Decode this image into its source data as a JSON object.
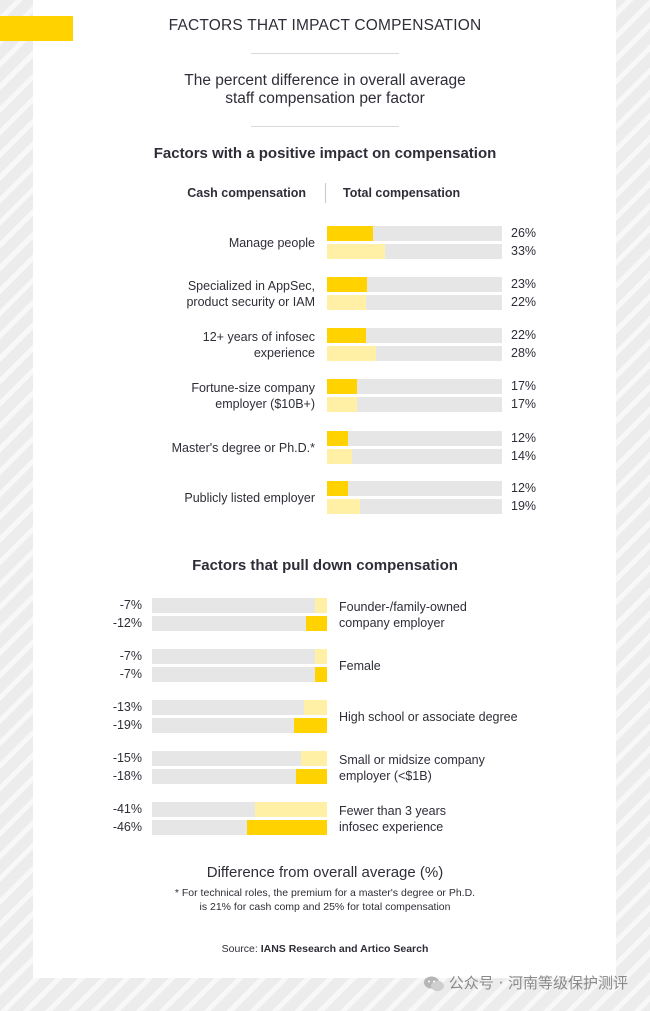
{
  "header": {
    "title": "FACTORS THAT IMPACT COMPENSATION",
    "subtitle_line1": "The percent difference in overall average",
    "subtitle_line2": "staff compensation per factor"
  },
  "colors": {
    "accent": "#ffd200",
    "cash": "#ffd200",
    "total": "#fff0a6",
    "track": "#e6e6e6",
    "text": "#2e2e38"
  },
  "chart_data": [
    {
      "type": "bar",
      "orientation": "horizontal",
      "title": "Factors with a positive impact on compensation",
      "legend": [
        "Cash compensation",
        "Total compensation"
      ],
      "categories": [
        [
          "Manage people"
        ],
        [
          "Specialized in AppSec,",
          "product security or IAM"
        ],
        [
          "12+ years of infosec",
          "experience"
        ],
        [
          "Fortune-size company",
          "employer ($10B+)"
        ],
        [
          "Master's degree or Ph.D.*"
        ],
        [
          "Publicly listed employer"
        ]
      ],
      "series": [
        {
          "name": "Cash compensation",
          "values": [
            26,
            23,
            22,
            17,
            12,
            12
          ],
          "labels": [
            "26%",
            "23%",
            "22%",
            "17%",
            "12%",
            "12%"
          ]
        },
        {
          "name": "Total compensation",
          "values": [
            33,
            22,
            28,
            17,
            14,
            19
          ],
          "labels": [
            "33%",
            "22%",
            "28%",
            "17%",
            "14%",
            "19%"
          ]
        }
      ],
      "xlim": [
        0,
        100
      ]
    },
    {
      "type": "bar",
      "orientation": "horizontal",
      "title": "Factors that pull down compensation",
      "categories": [
        [
          "Founder-/family-owned",
          "company employer"
        ],
        [
          "Female"
        ],
        [
          "High school or associate degree"
        ],
        [
          "Small or midsize company",
          "employer (<$1B)"
        ],
        [
          "Fewer than 3 years",
          "infosec experience"
        ]
      ],
      "series": [
        {
          "name": "Total compensation",
          "values": [
            -7,
            -7,
            -13,
            -15,
            -41
          ],
          "labels": [
            "-7%",
            "-7%",
            "-13%",
            "-15%",
            "-41%"
          ]
        },
        {
          "name": "Cash compensation",
          "values": [
            -12,
            -7,
            -19,
            -18,
            -46
          ],
          "labels": [
            "-12%",
            "-7%",
            "-19%",
            "-18%",
            "-46%"
          ]
        }
      ],
      "xlim": [
        -100,
        0
      ],
      "xlabel": "Difference from overall average (%)"
    }
  ],
  "footnote_line1": "* For technical roles, the premium for a master's degree or Ph.D.",
  "footnote_line2": "is 21% for cash comp and 25% for total compensation",
  "source_prefix": "Source: ",
  "source_name": "IANS Research and Artico Search",
  "watermark": "公众号 · 河南等级保护测评"
}
